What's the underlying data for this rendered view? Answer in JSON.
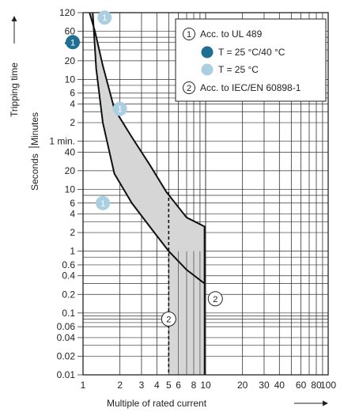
{
  "chart_data": {
    "type": "line",
    "title": "",
    "xlabel": "Multiple of rated current",
    "ylabel": "Tripping time",
    "y_unit_upper": "Minutes",
    "y_unit_lower": "Seconds",
    "x_scale": "log",
    "y_scale": "log",
    "grid": true,
    "xlim": [
      1,
      100
    ],
    "x_ticks": [
      1,
      2,
      3,
      4,
      5,
      6,
      8,
      10,
      20,
      30,
      40,
      60,
      80,
      100
    ],
    "x_tick_labels": [
      "1",
      "2",
      "3",
      "4",
      "5",
      "6",
      "8",
      "10",
      "20",
      "30",
      "40",
      "60",
      "80",
      "100"
    ],
    "y_ticks_minutes": [
      {
        "label": "120",
        "seconds": 7200
      },
      {
        "label": "60",
        "seconds": 3600
      },
      {
        "label": "40",
        "seconds": 2400
      },
      {
        "label": "20",
        "seconds": 1200
      },
      {
        "label": "10",
        "seconds": 600
      },
      {
        "label": "6",
        "seconds": 360
      },
      {
        "label": "4",
        "seconds": 240
      },
      {
        "label": "2",
        "seconds": 120
      },
      {
        "label": "1 min.",
        "seconds": 60
      }
    ],
    "y_ticks_seconds": [
      {
        "label": "40",
        "seconds": 40
      },
      {
        "label": "20",
        "seconds": 20
      },
      {
        "label": "10",
        "seconds": 10
      },
      {
        "label": "6",
        "seconds": 6
      },
      {
        "label": "4",
        "seconds": 4
      },
      {
        "label": "2",
        "seconds": 2
      },
      {
        "label": "1",
        "seconds": 1
      },
      {
        "label": "0.6",
        "seconds": 0.6
      },
      {
        "label": "0.4",
        "seconds": 0.4
      },
      {
        "label": "0.2",
        "seconds": 0.2
      },
      {
        "label": "0.1",
        "seconds": 0.1
      },
      {
        "label": "0.06",
        "seconds": 0.06
      },
      {
        "label": "0.04",
        "seconds": 0.04
      },
      {
        "label": "0.02",
        "seconds": 0.02
      },
      {
        "label": "0.01",
        "seconds": 0.01
      }
    ],
    "band_color": "#d6d6d6",
    "series": [
      {
        "role": "upper-limit",
        "x": [
          1.13,
          1.25,
          1.45,
          1.8,
          2.5,
          3.5,
          4.8,
          7,
          9.8,
          9.8
        ],
        "y": [
          7200,
          3600,
          1000,
          200,
          70,
          25,
          9,
          3.5,
          2.5,
          0.3
        ]
      },
      {
        "role": "lower-limit",
        "x": [
          1.2,
          1.28,
          1.45,
          1.8,
          2.5,
          3.5,
          5,
          7,
          9.8
        ],
        "y": [
          7200,
          900,
          120,
          18,
          6,
          2.5,
          1,
          0.5,
          0.3
        ]
      }
    ],
    "legend": {
      "items": [
        {
          "marker": "1",
          "label": "Acc. to UL 489"
        },
        {
          "marker": "dot-dark",
          "color": "#1e6f93",
          "label": "T = 25 °C/40 °C"
        },
        {
          "marker": "dot-light",
          "color": "#a9cfe0",
          "label": "T = 25 °C"
        },
        {
          "marker": "2",
          "label": "Acc. to IEC/EN 60898-1"
        }
      ]
    },
    "annotations": [
      {
        "text": "1",
        "style": "light",
        "x": 1.5,
        "y": 6000
      },
      {
        "text": "1",
        "style": "dark",
        "x": 1.0,
        "y": 2400
      },
      {
        "text": "1",
        "style": "light",
        "x": 2.0,
        "y": 200
      },
      {
        "text": "1",
        "style": "light",
        "x": 1.45,
        "y": 6
      },
      {
        "text": "2",
        "style": "outline",
        "x": 5.0,
        "y": 0.08
      },
      {
        "text": "2",
        "style": "outline",
        "x": 12.0,
        "y": 0.17
      }
    ]
  }
}
